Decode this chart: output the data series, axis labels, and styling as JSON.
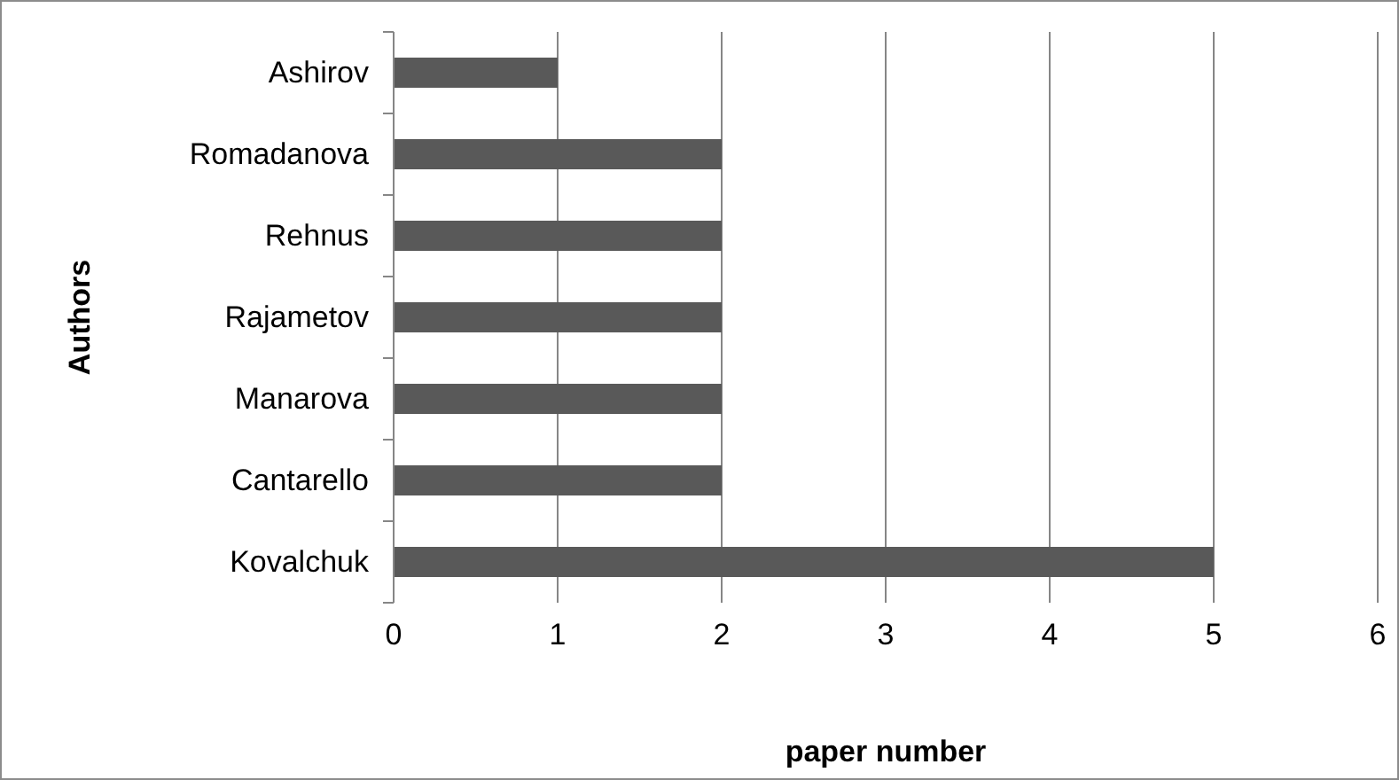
{
  "chart_data": {
    "type": "bar",
    "orientation": "horizontal",
    "xlabel": "paper number",
    "ylabel": "Authors",
    "categories": [
      "Ashirov",
      "Romadanova",
      "Rehnus",
      "Rajametov",
      "Manarova",
      "Cantarello",
      "Kovalchuk"
    ],
    "values": [
      1,
      2,
      2,
      2,
      2,
      2,
      5
    ],
    "color": "#595959",
    "xlim": [
      0,
      6
    ],
    "xticks": [
      0,
      1,
      2,
      3,
      4,
      5,
      6
    ],
    "grid": "x"
  }
}
